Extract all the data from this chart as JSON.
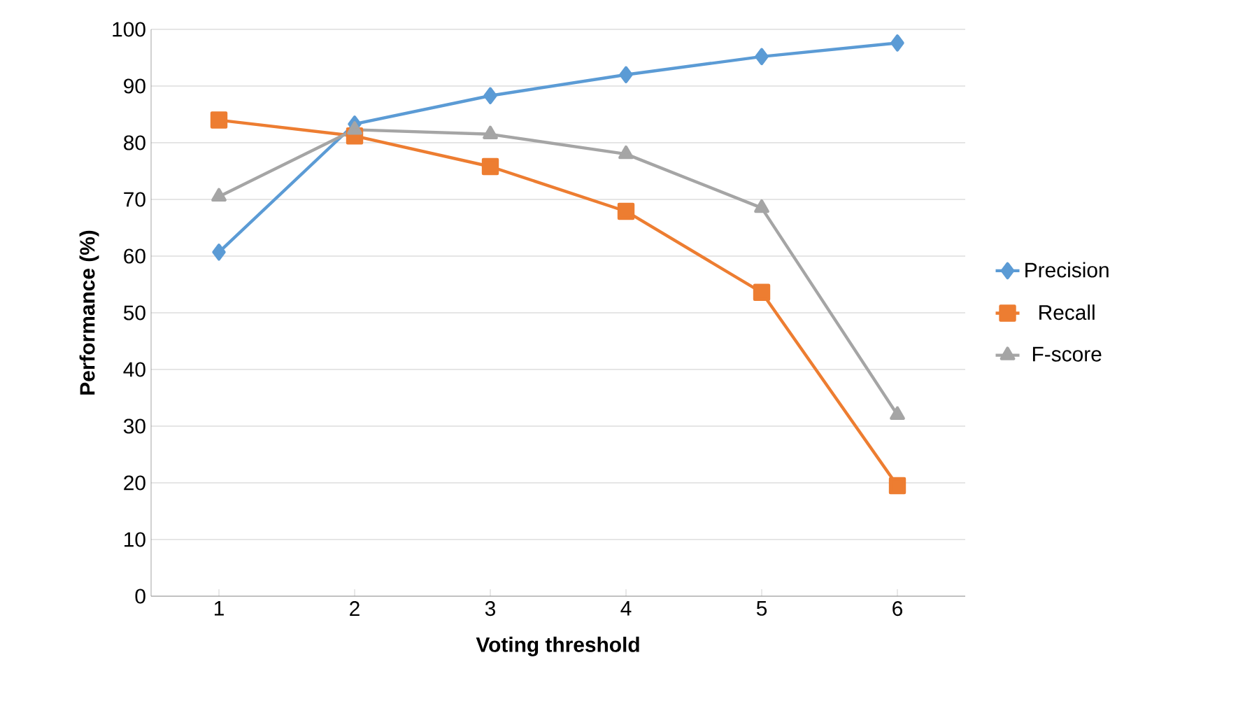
{
  "chart_data": {
    "type": "line",
    "xlabel": "Voting threshold",
    "ylabel": "Performance (%)",
    "categories": [
      "1",
      "2",
      "3",
      "4",
      "5",
      "6"
    ],
    "series": [
      {
        "name": "Precision",
        "color": "#5b9bd5",
        "marker": "diamond",
        "values": [
          60.7,
          83.3,
          88.3,
          92,
          95.2,
          97.6
        ]
      },
      {
        "name": "Recall",
        "color": "#ed7d31",
        "marker": "square",
        "values": [
          84,
          81.2,
          75.8,
          67.9,
          53.6,
          19.5
        ]
      },
      {
        "name": "F-score",
        "color": "#a5a5a5",
        "marker": "triangle",
        "values": [
          70.5,
          82.3,
          81.5,
          78,
          68.5,
          32
        ]
      }
    ],
    "ylim": [
      0,
      100
    ],
    "yticks": [
      0,
      10,
      20,
      30,
      40,
      50,
      60,
      70,
      80,
      90,
      100
    ],
    "grid": "y",
    "legend": "right",
    "line_style": "solid"
  }
}
